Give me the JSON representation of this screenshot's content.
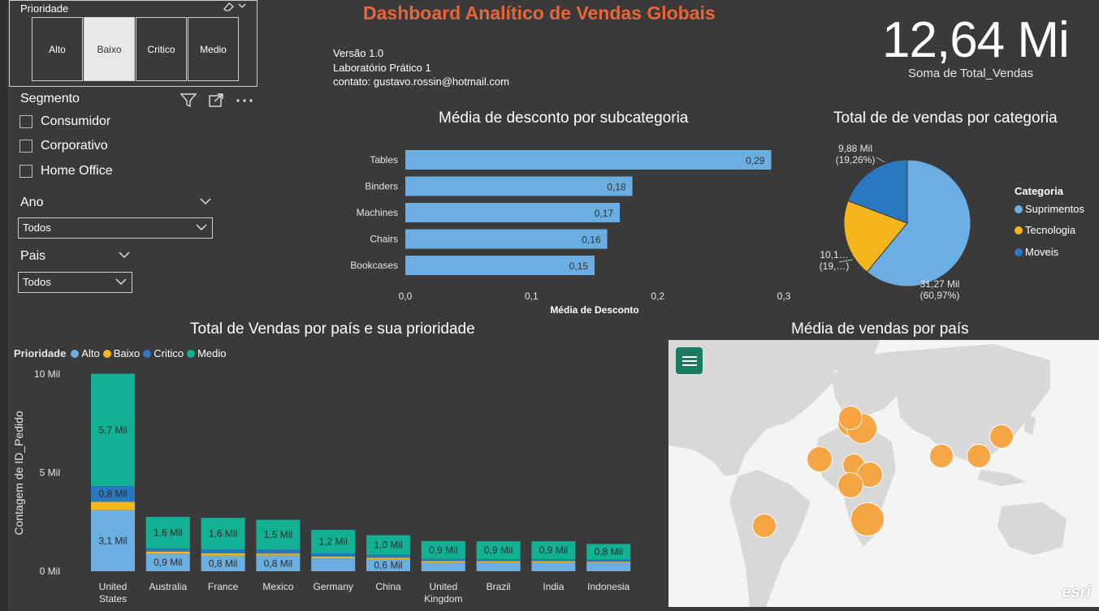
{
  "priority_slicer": {
    "title": "Prioridade",
    "options": [
      "Alto",
      "Baixo",
      "Critico",
      "Medio"
    ],
    "selected": "Baixo"
  },
  "segment_slicer": {
    "title": "Segmento",
    "options": [
      "Consumidor",
      "Corporativo",
      "Home Office"
    ]
  },
  "year_slicer": {
    "title": "Ano",
    "value": "Todos"
  },
  "country_slicer": {
    "title": "Pais",
    "value": "Todos"
  },
  "header": {
    "title": "Dashboard Analítico de Vendas Globais",
    "version": "Versão 1.0",
    "lab": "Laboratório Prático 1",
    "contact": "contato: gustavo.rossin@hotmail.com"
  },
  "kpi": {
    "value": "12,64 Mi",
    "label": "Soma de Total_Vendas"
  },
  "colors": {
    "alto": "#6aaee2",
    "baixo": "#f5b51c",
    "critico": "#2a78c2",
    "medio": "#12b193",
    "title_accent": "#e8643a",
    "map_bubble": "#f8a33e"
  },
  "discount_chart": {
    "title": "Média de desconto por subcategoria",
    "xlabel": "Média de Desconto",
    "ticks": [
      "0,0",
      "0,1",
      "0,2",
      "0,3"
    ],
    "chart_data": {
      "type": "bar",
      "categories": [
        "Tables",
        "Binders",
        "Machines",
        "Chairs",
        "Bookcases"
      ],
      "values": [
        0.29,
        0.18,
        0.17,
        0.16,
        0.15
      ],
      "labels": [
        "0,29",
        "0,18",
        "0,17",
        "0,16",
        "0,15"
      ],
      "xlim": [
        0,
        0.3
      ]
    }
  },
  "pie_chart": {
    "title": "Total de de vendas por categoria",
    "legend_title": "Categoria",
    "chart_data": {
      "type": "pie",
      "slices": [
        {
          "name": "Suprimentos",
          "percent": 60.97,
          "label": "31,27 Mil",
          "pct_label": "(60,97%)",
          "color": "#6aaee2"
        },
        {
          "name": "Tecnologia",
          "percent": 19.77,
          "label": "10,1…",
          "pct_label": "(19,…)",
          "color": "#f5b51c"
        },
        {
          "name": "Moveis",
          "percent": 19.26,
          "label": "9,88 Mil",
          "pct_label": "(19,26%)",
          "color": "#2a78c2"
        }
      ]
    }
  },
  "stacked_chart": {
    "title": "Total de Vendas por país e sua prioridade",
    "legend_title": "Prioridade",
    "ylabel": "Contagem de ID_Pedido",
    "y_ticks": [
      "10 Mil",
      "5 Mil",
      "0 Mil"
    ],
    "chart_data": {
      "type": "bar",
      "stacked": true,
      "ylim": [
        0,
        10000
      ],
      "categories": [
        "United States",
        "Australia",
        "France",
        "Mexico",
        "Germany",
        "China",
        "United Kingdom",
        "Brazil",
        "India",
        "Indonesia"
      ],
      "category_lines": [
        [
          "United",
          "States"
        ],
        [
          "Australia"
        ],
        [
          "France"
        ],
        [
          "Mexico"
        ],
        [
          "Germany"
        ],
        [
          "China"
        ],
        [
          "United",
          "Kingdom"
        ],
        [
          "Brazil"
        ],
        [
          "India"
        ],
        [
          "Indonesia"
        ]
      ],
      "series": [
        {
          "name": "Alto",
          "values": [
            3100,
            900,
            800,
            800,
            650,
            600,
            450,
            450,
            450,
            430
          ],
          "labels": [
            "3,1 Mil",
            "0,9 Mil",
            "0,8 Mil",
            "0,8 Mil",
            "",
            "0,6 Mil",
            "",
            "",
            "",
            ""
          ]
        },
        {
          "name": "Baixo",
          "values": [
            420,
            100,
            110,
            100,
            90,
            80,
            70,
            60,
            60,
            55
          ],
          "labels": [
            "",
            "",
            "",
            "",
            "",
            "",
            "",
            "",
            "",
            ""
          ]
        },
        {
          "name": "Critico",
          "values": [
            800,
            160,
            200,
            210,
            160,
            150,
            110,
            110,
            110,
            100
          ],
          "labels": [
            "0,8 Mil",
            "",
            "",
            "",
            "",
            "",
            "",
            "",
            "",
            ""
          ]
        },
        {
          "name": "Medio",
          "values": [
            5700,
            1600,
            1600,
            1500,
            1200,
            1000,
            900,
            900,
            900,
            800
          ],
          "labels": [
            "5,7 Mil",
            "1,6 Mil",
            "1,6 Mil",
            "1,5 Mil",
            "1,2 Mil",
            "1,0 Mil",
            "0,9 Mil",
            "0,9 Mil",
            "0,9 Mil",
            "0,8 Mil"
          ]
        }
      ]
    }
  },
  "map_chart": {
    "title": "Média de vendas por país",
    "attribution": "esri"
  }
}
